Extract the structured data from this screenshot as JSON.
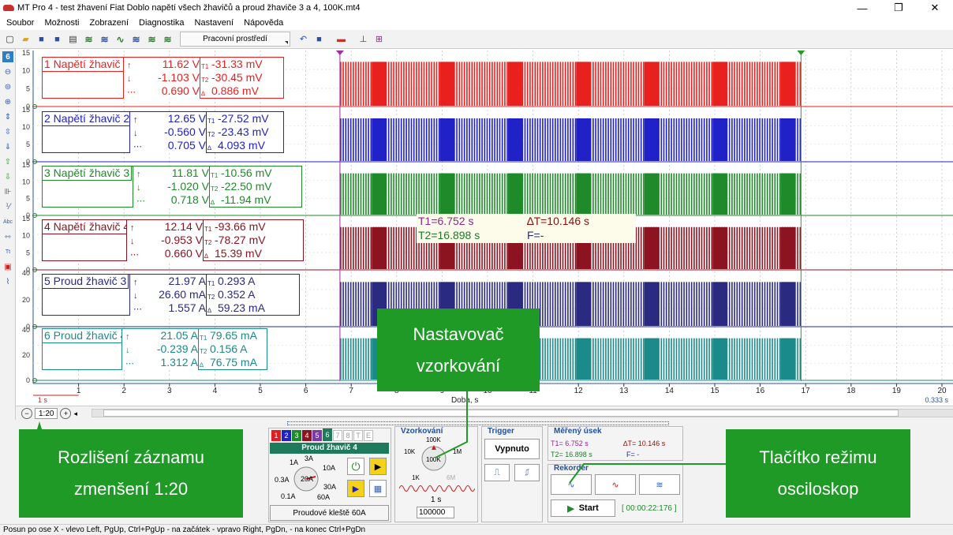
{
  "window": {
    "title": "MT Pro 4 - test žhavení Fiat Doblo napětí všech žhavičů a proud žhaviče 3 a 4, 100K.mt4",
    "minimize": "—",
    "maximize": "❐",
    "close": "✕"
  },
  "menu": [
    "Soubor",
    "Možnosti",
    "Zobrazení",
    "Diagnostika",
    "Nastavení",
    "Nápověda"
  ],
  "toolbar": {
    "workspace_label": "Pracovní prostředí"
  },
  "sidebar": {
    "channel_number": "6"
  },
  "channels": [
    {
      "name": "1 Napětí žhavič 1",
      "color": "#e8211f",
      "v1": "11.62 V",
      "v2": "-1.103 V",
      "v3": "0.690 V",
      "c1": "-31.33 mV",
      "c2": "-30.45 mV",
      "c3": "0.886 mV"
    },
    {
      "name": "2 Napětí žhavič 2",
      "color": "#2121c8",
      "v1": "12.65 V",
      "v2": "-0.560 V",
      "v3": "0.705 V",
      "c1": "-27.52 mV",
      "c2": "-23.43 mV",
      "c3": "4.093 mV"
    },
    {
      "name": "3 Napětí  žhavič 3",
      "color": "#1e8a2a",
      "v1": "11.81 V",
      "v2": "-1.020 V",
      "v3": "0.718 V",
      "c1": "-10.56 mV",
      "c2": "-22.50 mV",
      "c3": "-11.94 mV"
    },
    {
      "name": "4 Napětí žhavič 4",
      "color": "#8c1420",
      "v1": "12.14 V",
      "v2": "-0.953 V",
      "v3": "0.660 V",
      "c1": "-93.66 mV",
      "c2": "-78.27 mV",
      "c3": "15.39 mV"
    },
    {
      "name": "5 Proud žhavič 3",
      "color": "#2a2a80",
      "v1": "21.97 A",
      "v2": "26.60 mA",
      "v3": "1.557 A",
      "c1": "0.293 A",
      "c2": "0.352 A",
      "c3": "59.23 mA"
    },
    {
      "name": "6 Proud žhavič 4",
      "color": "#1a8a8a",
      "v1": "21.05 A",
      "v2": "-0.239 A",
      "v3": "1.312 A",
      "c1": "79.65 mA",
      "c2": "0.156 A",
      "c3": "76.75 mA"
    }
  ],
  "channel_scales": [
    [
      "15",
      "10",
      "5",
      "0"
    ],
    [
      "15",
      "10",
      "5",
      "0"
    ],
    [
      "15",
      "10",
      "5",
      "0"
    ],
    [
      "15",
      "10",
      "5",
      "0"
    ],
    [
      "40",
      "20",
      "0"
    ],
    [
      "40",
      "20",
      "0"
    ]
  ],
  "cursors": {
    "t1": "T1=6.752 s",
    "t2": "T2=16.898 s",
    "dt": "∆T=10.146 s",
    "f": "F=-"
  },
  "xaxis": {
    "ticks": [
      "1",
      "2",
      "3",
      "4",
      "5",
      "6",
      "7",
      "8",
      "9",
      "10",
      "11",
      "12",
      "13",
      "14",
      "15",
      "16",
      "17",
      "18",
      "19",
      "20"
    ],
    "label": "Doba, s",
    "scale_left": "1 s",
    "scale_right": "0.333 s"
  },
  "zoom": {
    "value": "1:20",
    "minus": "−",
    "plus": "+"
  },
  "bottom": {
    "channel_tabs": [
      "1",
      "2",
      "3",
      "4",
      "5",
      "6",
      "7",
      "8",
      "T",
      "E"
    ],
    "probe_title": "Proud žhavič 4",
    "range_labels": [
      "1A",
      "3A",
      "10A",
      "0.3A",
      "20A",
      "30A",
      "0.1A",
      "60A"
    ],
    "range_value": "20A",
    "probe_name": "Proudové kleště 60A",
    "sampling_title": "Vzorkování",
    "sampling_labels": [
      "100K",
      "10K",
      "1M",
      "1K",
      "6M"
    ],
    "sampling_value": "100K",
    "sampling_time": "1 s",
    "sampling_samples": "100000",
    "trigger_title": "Trigger",
    "trigger_value": "Vypnuto",
    "measured_title": "Měřený úsek",
    "measured_t1": "T1= 6.752 s",
    "measured_t2": "T2= 16.898 s",
    "measured_dt": "∆T= 10.146 s",
    "measured_f": "F= -",
    "recorder_title": "Rekordér",
    "start_label": "Start",
    "elapsed": "[ 00:00:22:176 ]"
  },
  "callouts": {
    "sampling": [
      "Nastavovač",
      "vzorkování"
    ],
    "resolution": [
      "Rozlišení záznamu",
      "zmenšení 1:20"
    ],
    "scope": [
      "Tlačítko režimu",
      "osciloskop"
    ]
  },
  "status": "Posun po ose X - vlevo Left, PgUp, Ctrl+PgUp - na začátek - vpravo Right, PgDn, - na konec Ctrl+PgDn"
}
